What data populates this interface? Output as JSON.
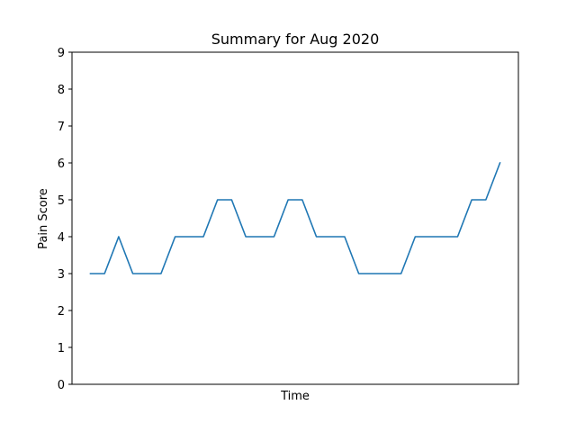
{
  "chart_data": {
    "type": "line",
    "title": "Summary for Aug 2020",
    "xlabel": "Time",
    "ylabel": "Pain Score",
    "x": [
      1,
      2,
      3,
      4,
      5,
      6,
      7,
      8,
      9,
      10,
      11,
      12,
      13,
      14,
      15,
      16,
      17,
      18,
      19,
      20,
      21,
      22,
      23,
      24,
      25,
      26,
      27,
      28,
      29,
      30
    ],
    "series": [
      {
        "values": [
          3,
          3,
          4,
          3,
          3,
          3,
          4,
          4,
          4,
          5,
          5,
          4,
          4,
          4,
          5,
          5,
          4,
          4,
          4,
          3,
          3,
          3,
          3,
          4,
          4,
          4,
          4,
          5,
          5,
          6
        ],
        "color": "#1f77b4"
      }
    ],
    "ylim": [
      0,
      9
    ],
    "yticks": [
      0,
      1,
      2,
      3,
      4,
      5,
      6,
      7,
      8,
      9
    ],
    "xticks_visible": false,
    "grid": false
  }
}
